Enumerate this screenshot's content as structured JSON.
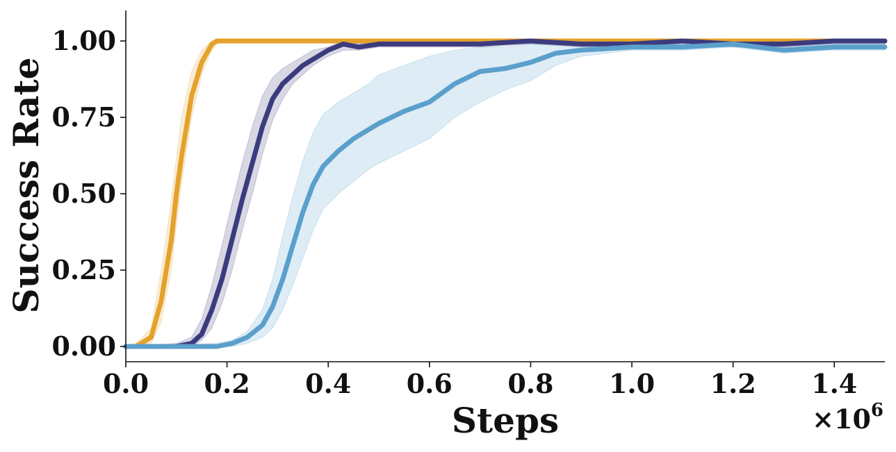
{
  "chart_data": {
    "type": "line",
    "xlabel": "Steps",
    "ylabel": "Success Rate",
    "x_multiplier_label": "×10",
    "x_multiplier_exponent": "6",
    "xlim": [
      0.0,
      1.5
    ],
    "ylim": [
      -0.05,
      1.1
    ],
    "x_ticks": [
      "0.0",
      "0.2",
      "0.4",
      "0.6",
      "0.8",
      "1.0",
      "1.2",
      "1.4"
    ],
    "y_ticks": [
      "0.00",
      "0.25",
      "0.50",
      "0.75",
      "1.00"
    ],
    "grid": false,
    "legend": "none",
    "series": [
      {
        "color": "#E4A22D",
        "x": [
          0.0,
          0.02,
          0.05,
          0.07,
          0.09,
          0.1,
          0.11,
          0.13,
          0.15,
          0.17,
          0.18,
          0.2,
          0.3,
          0.5,
          0.7,
          0.9,
          1.1,
          1.3,
          1.5
        ],
        "y": [
          0.0,
          0.0,
          0.03,
          0.15,
          0.35,
          0.5,
          0.62,
          0.82,
          0.93,
          0.99,
          1.0,
          1.0,
          1.0,
          1.0,
          1.0,
          1.0,
          1.0,
          1.0,
          1.0
        ],
        "band_low": [
          0.0,
          0.0,
          0.01,
          0.08,
          0.25,
          0.4,
          0.53,
          0.75,
          0.89,
          0.97,
          0.99,
          1.0,
          1.0,
          1.0,
          1.0,
          1.0,
          1.0,
          1.0,
          1.0
        ],
        "band_high": [
          0.0,
          0.01,
          0.06,
          0.25,
          0.48,
          0.62,
          0.75,
          0.9,
          0.97,
          1.0,
          1.0,
          1.0,
          1.0,
          1.0,
          1.0,
          1.0,
          1.0,
          1.0,
          1.0
        ]
      },
      {
        "color": "#3B3B7E",
        "x": [
          0.0,
          0.1,
          0.13,
          0.15,
          0.17,
          0.19,
          0.21,
          0.23,
          0.25,
          0.27,
          0.29,
          0.31,
          0.33,
          0.35,
          0.37,
          0.4,
          0.43,
          0.46,
          0.5,
          0.6,
          0.7,
          0.8,
          0.9,
          1.0,
          1.1,
          1.2,
          1.3,
          1.4,
          1.5
        ],
        "y": [
          0.0,
          0.0,
          0.01,
          0.04,
          0.12,
          0.22,
          0.35,
          0.48,
          0.6,
          0.72,
          0.81,
          0.86,
          0.89,
          0.92,
          0.94,
          0.97,
          0.99,
          0.98,
          0.99,
          0.99,
          0.99,
          1.0,
          0.99,
          0.99,
          1.0,
          0.99,
          0.99,
          1.0,
          1.0
        ],
        "band_low": [
          0.0,
          0.0,
          0.0,
          0.02,
          0.06,
          0.14,
          0.25,
          0.38,
          0.5,
          0.63,
          0.74,
          0.81,
          0.86,
          0.89,
          0.92,
          0.95,
          0.97,
          0.97,
          0.98,
          0.98,
          0.98,
          0.99,
          0.98,
          0.98,
          0.99,
          0.98,
          0.98,
          0.99,
          0.99
        ],
        "band_high": [
          0.0,
          0.01,
          0.03,
          0.09,
          0.2,
          0.33,
          0.47,
          0.6,
          0.72,
          0.82,
          0.88,
          0.91,
          0.93,
          0.95,
          0.97,
          0.98,
          1.0,
          0.99,
          1.0,
          1.0,
          1.0,
          1.0,
          1.0,
          1.0,
          1.0,
          1.0,
          1.0,
          1.0,
          1.0
        ]
      },
      {
        "color": "#5B9FCB",
        "x": [
          0.0,
          0.18,
          0.21,
          0.24,
          0.27,
          0.29,
          0.31,
          0.33,
          0.35,
          0.37,
          0.39,
          0.42,
          0.45,
          0.48,
          0.5,
          0.55,
          0.6,
          0.65,
          0.7,
          0.75,
          0.8,
          0.85,
          0.9,
          1.0,
          1.1,
          1.2,
          1.3,
          1.4,
          1.5
        ],
        "y": [
          0.0,
          0.0,
          0.01,
          0.03,
          0.07,
          0.13,
          0.22,
          0.33,
          0.44,
          0.53,
          0.59,
          0.64,
          0.68,
          0.71,
          0.73,
          0.77,
          0.8,
          0.86,
          0.9,
          0.91,
          0.93,
          0.96,
          0.97,
          0.98,
          0.98,
          0.99,
          0.97,
          0.98,
          0.98
        ],
        "band_low": [
          0.0,
          0.0,
          0.0,
          0.01,
          0.03,
          0.06,
          0.12,
          0.2,
          0.29,
          0.38,
          0.45,
          0.5,
          0.54,
          0.58,
          0.6,
          0.64,
          0.68,
          0.75,
          0.8,
          0.84,
          0.87,
          0.92,
          0.95,
          0.97,
          0.97,
          0.98,
          0.96,
          0.97,
          0.97
        ],
        "band_high": [
          0.0,
          0.01,
          0.02,
          0.05,
          0.12,
          0.22,
          0.36,
          0.49,
          0.61,
          0.7,
          0.76,
          0.8,
          0.83,
          0.86,
          0.89,
          0.92,
          0.95,
          0.97,
          0.98,
          0.98,
          0.99,
          0.99,
          0.99,
          0.99,
          0.99,
          1.0,
          0.98,
          0.99,
          0.99
        ]
      }
    ]
  }
}
